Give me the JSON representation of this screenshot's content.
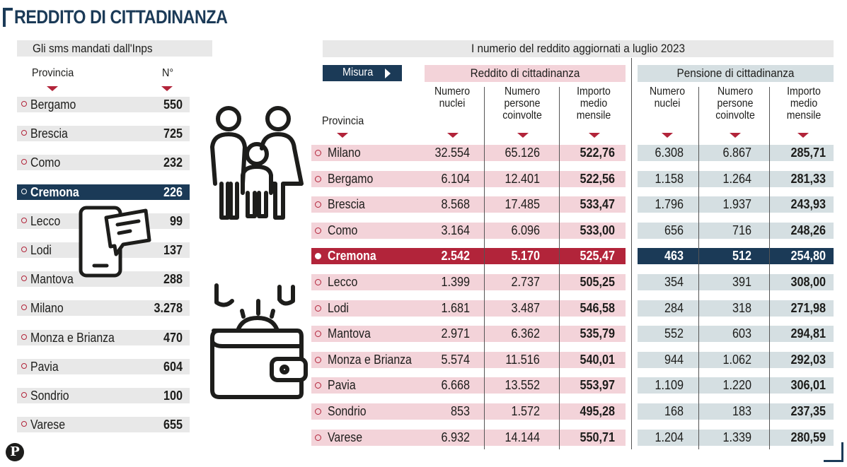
{
  "header": {
    "title": "REDDITO DI CITTADINANZA"
  },
  "sms_table": {
    "title": "Gli sms mandati dall'Inps",
    "col_province": "Provincia",
    "col_count": "N°",
    "highlight": "Cremona",
    "rows": [
      {
        "name": "Bergamo",
        "count": "550"
      },
      {
        "name": "Brescia",
        "count": "725"
      },
      {
        "name": "Como",
        "count": "232"
      },
      {
        "name": "Cremona",
        "count": "226"
      },
      {
        "name": "Lecco",
        "count": "99"
      },
      {
        "name": "Lodi",
        "count": "137"
      },
      {
        "name": "Mantova",
        "count": "288"
      },
      {
        "name": "Milano",
        "count": "3.278"
      },
      {
        "name": "Monza e Brianza",
        "count": "470"
      },
      {
        "name": "Pavia",
        "count": "604"
      },
      {
        "name": "Sondrio",
        "count": "100"
      },
      {
        "name": "Varese",
        "count": "655"
      }
    ]
  },
  "main_table": {
    "title": "I numerio del reddito aggiornati a luglio 2023",
    "measure_button": "Misura",
    "col_province": "Provincia",
    "group_rdc": "Reddito di cittadinanza",
    "group_pdc": "Pensione di cittadinanza",
    "sub_nuclei": "Numero\nnuclei",
    "sub_persone": "Numero\npersone\ncoinvolte",
    "sub_importo": "Importo\nmedio\nmensile",
    "highlight": "Cremona",
    "rows": [
      {
        "name": "Milano",
        "rdc": [
          "32.554",
          "65.126",
          "522,76"
        ],
        "pdc": [
          "6.308",
          "6.867",
          "285,71"
        ]
      },
      {
        "name": "Bergamo",
        "rdc": [
          "6.104",
          "12.401",
          "522,56"
        ],
        "pdc": [
          "1.158",
          "1.264",
          "281,33"
        ]
      },
      {
        "name": "Brescia",
        "rdc": [
          "8.568",
          "17.485",
          "533,47"
        ],
        "pdc": [
          "1.796",
          "1.937",
          "243,93"
        ]
      },
      {
        "name": "Como",
        "rdc": [
          "3.164",
          "6.096",
          "533,00"
        ],
        "pdc": [
          "656",
          "716",
          "248,26"
        ]
      },
      {
        "name": "Cremona",
        "rdc": [
          "2.542",
          "5.170",
          "525,47"
        ],
        "pdc": [
          "463",
          "512",
          "254,80"
        ]
      },
      {
        "name": "Lecco",
        "rdc": [
          "1.399",
          "2.737",
          "505,25"
        ],
        "pdc": [
          "354",
          "391",
          "308,00"
        ]
      },
      {
        "name": "Lodi",
        "rdc": [
          "1.681",
          "3.487",
          "546,58"
        ],
        "pdc": [
          "284",
          "318",
          "271,98"
        ]
      },
      {
        "name": "Mantova",
        "rdc": [
          "2.971",
          "6.362",
          "535,79"
        ],
        "pdc": [
          "552",
          "603",
          "294,81"
        ]
      },
      {
        "name": "Monza e Brianza",
        "rdc": [
          "5.574",
          "11.516",
          "540,01"
        ],
        "pdc": [
          "944",
          "1.062",
          "292,03"
        ]
      },
      {
        "name": "Pavia",
        "rdc": [
          "6.668",
          "13.552",
          "553,97"
        ],
        "pdc": [
          "1.109",
          "1.220",
          "306,01"
        ]
      },
      {
        "name": "Sondrio",
        "rdc": [
          "853",
          "1.572",
          "495,28"
        ],
        "pdc": [
          "168",
          "183",
          "237,35"
        ]
      },
      {
        "name": "Varese",
        "rdc": [
          "6.932",
          "14.144",
          "550,71"
        ],
        "pdc": [
          "1.204",
          "1.339",
          "280,59"
        ]
      }
    ]
  },
  "footer": {
    "logo_letter": "P"
  },
  "colors": {
    "navy": "#1b3a57",
    "red": "#b2243a",
    "pink": "#f3d3d9",
    "blue_gray": "#d5dfe2",
    "gray": "#e8e8e8"
  },
  "icons": [
    "family-icon",
    "smartphone-chat-icon",
    "wallet-coins-icon",
    "publisher-logo"
  ],
  "chart_data": {
    "type": "table",
    "title": "REDDITO DI CITTADINANZA",
    "tables": [
      {
        "title": "Gli sms mandati dall'Inps",
        "columns": [
          "Provincia",
          "N°"
        ],
        "rows": [
          [
            "Bergamo",
            550
          ],
          [
            "Brescia",
            725
          ],
          [
            "Como",
            232
          ],
          [
            "Cremona",
            226
          ],
          [
            "Lecco",
            99
          ],
          [
            "Lodi",
            137
          ],
          [
            "Mantova",
            288
          ],
          [
            "Milano",
            3278
          ],
          [
            "Monza e Brianza",
            470
          ],
          [
            "Pavia",
            604
          ],
          [
            "Sondrio",
            100
          ],
          [
            "Varese",
            655
          ]
        ]
      },
      {
        "title": "I numerio del reddito aggiornati a luglio 2023",
        "column_groups": [
          "Reddito di cittadinanza",
          "Pensione di cittadinanza"
        ],
        "columns": [
          "Provincia",
          "Numero nuclei",
          "Numero persone coinvolte",
          "Importo medio mensile",
          "Numero nuclei",
          "Numero persone coinvolte",
          "Importo medio mensile"
        ],
        "rows": [
          [
            "Milano",
            32554,
            65126,
            522.76,
            6308,
            6867,
            285.71
          ],
          [
            "Bergamo",
            6104,
            12401,
            522.56,
            1158,
            1264,
            281.33
          ],
          [
            "Brescia",
            8568,
            17485,
            533.47,
            1796,
            1937,
            243.93
          ],
          [
            "Como",
            3164,
            6096,
            533.0,
            656,
            716,
            248.26
          ],
          [
            "Cremona",
            2542,
            5170,
            525.47,
            463,
            512,
            254.8
          ],
          [
            "Lecco",
            1399,
            2737,
            505.25,
            354,
            391,
            308.0
          ],
          [
            "Lodi",
            1681,
            3487,
            546.58,
            284,
            318,
            271.98
          ],
          [
            "Mantova",
            2971,
            6362,
            535.79,
            552,
            603,
            294.81
          ],
          [
            "Monza e Brianza",
            5574,
            11516,
            540.01,
            944,
            1062,
            292.03
          ],
          [
            "Pavia",
            6668,
            13552,
            553.97,
            1109,
            1220,
            306.01
          ],
          [
            "Sondrio",
            853,
            1572,
            495.28,
            168,
            183,
            237.35
          ],
          [
            "Varese",
            6932,
            14144,
            550.71,
            1204,
            1339,
            280.59
          ]
        ]
      }
    ]
  }
}
